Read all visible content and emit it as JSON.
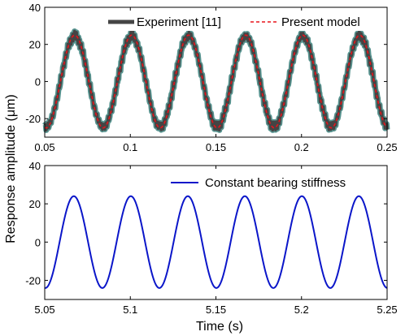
{
  "figure": {
    "ylabel": "Response amplitude (μm)",
    "xlabel": "Time (s)"
  },
  "chart_data": [
    {
      "type": "line",
      "xlim": [
        0.05,
        0.25
      ],
      "ylim": [
        -30,
        40
      ],
      "xticks": [
        "0.05",
        "0.1",
        "0.15",
        "0.2",
        "0.25"
      ],
      "yticks": [
        "-20",
        "0",
        "20",
        "40"
      ],
      "xlabel": "",
      "ylabel": "Response amplitude (μm)",
      "grid": false,
      "legend": "top",
      "series": [
        {
          "name": "Experiment [11]",
          "style": "thick-noisy",
          "color": "#444444",
          "waveform": {
            "amplitude": 24.5,
            "offset": 0,
            "period": 0.0333,
            "first_peak_x": 0.0675,
            "x_start": 0.05,
            "x_end": 0.25
          }
        },
        {
          "name": "Present model",
          "style": "dashed",
          "color": "#e8141a",
          "waveform": {
            "amplitude": 25,
            "offset": 0,
            "period": 0.0333,
            "first_peak_x": 0.0675,
            "x_start": 0.05,
            "x_end": 0.25
          }
        }
      ]
    },
    {
      "type": "line",
      "xlim": [
        5.05,
        5.25
      ],
      "ylim": [
        -30,
        40
      ],
      "xticks": [
        "5.05",
        "5.1",
        "5.15",
        "5.2",
        "5.25"
      ],
      "yticks": [
        "-20",
        "0",
        "20",
        "40"
      ],
      "xlabel": "Time (s)",
      "ylabel": "Response amplitude (μm)",
      "grid": false,
      "legend": "top-right",
      "series": [
        {
          "name": "Constant bearing stiffness",
          "style": "solid",
          "color": "#0b16c9",
          "waveform": {
            "amplitude": 24,
            "offset": 0,
            "period": 0.0333,
            "first_peak_x": 5.067,
            "x_start": 5.05,
            "x_end": 5.25
          }
        }
      ]
    }
  ]
}
